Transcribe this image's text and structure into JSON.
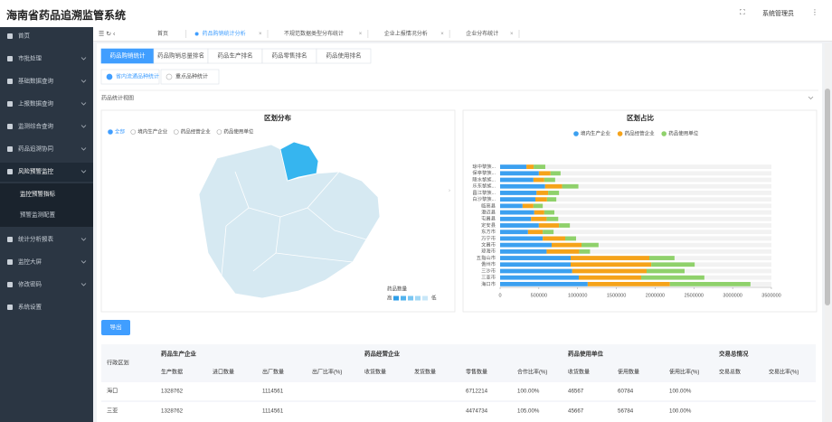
{
  "header": {
    "title": "海南省药品追溯监管系统",
    "user": "系统管理员"
  },
  "sidebar": {
    "items": [
      "首页",
      "市批处理",
      "基础数据查询",
      "上报数据查询",
      "监测综合查询",
      "药品追溯协同",
      "风险预警监控",
      "统计分析报表",
      "监控大屏",
      "修改密码",
      "系统设置"
    ],
    "subitems": [
      "监控预警指标",
      "预警监测配置"
    ]
  },
  "tabs": [
    "首页",
    "药品购销统计分析",
    "不规范数据类型分布统计",
    "企业上报情况分析",
    "企业分布统计"
  ],
  "subtabs": [
    "药品购销统计",
    "药品购销总量排名",
    "药品生产排名",
    "药品零售排名",
    "药品使用排名"
  ],
  "radios": [
    "省内流通品种统计",
    "重点品种统计"
  ],
  "section_title": "药品统计视图",
  "map": {
    "title": "区划分布",
    "options": [
      "全部",
      "境内生产企业",
      "药品经营企业",
      "药品使用单位"
    ],
    "legend_title": "药品数量",
    "legend_high": "高",
    "legend_low": "低"
  },
  "chart_data": {
    "type": "bar",
    "orientation": "horizontal",
    "stacked": true,
    "title": "区划占比",
    "categories": [
      "琼中黎族...",
      "保亭黎族...",
      "陵水黎族...",
      "乐东黎族...",
      "昌江黎族...",
      "白沙黎族...",
      "临高县",
      "澄迈县",
      "屯昌县",
      "定安县",
      "东方市",
      "万宁市",
      "文昌市",
      "琼海市",
      "五指山市",
      "儋州市",
      "三沙市",
      "三亚市",
      "海口市"
    ],
    "series": [
      {
        "name": "境内生产企业",
        "color": "#3ba0f0",
        "values": [
          340000,
          500000,
          430000,
          580000,
          470000,
          455000,
          290000,
          440000,
          400000,
          500000,
          360000,
          550000,
          665000,
          600000,
          910000,
          910000,
          930000,
          1015000,
          1130000
        ]
      },
      {
        "name": "药品经营企业",
        "color": "#f5a31a",
        "values": [
          93000,
          150000,
          140000,
          220000,
          150000,
          150000,
          140000,
          130000,
          200000,
          260000,
          190000,
          290000,
          385000,
          420000,
          1015000,
          1040000,
          960000,
          805000,
          1060000
        ]
      },
      {
        "name": "药品使用单位",
        "color": "#8fd16b",
        "values": [
          150000,
          130000,
          140000,
          210000,
          140000,
          120000,
          120000,
          130000,
          150000,
          140000,
          140000,
          140000,
          220000,
          140000,
          325000,
          560000,
          490000,
          815000,
          1040000
        ]
      }
    ],
    "xlim": [
      0,
      3500000
    ],
    "xticks": [
      0,
      500000,
      1000000,
      1500000,
      2000000,
      2500000,
      3000000,
      3500000
    ]
  },
  "export_button": "导出",
  "table": {
    "region_header": "行政区划",
    "groups": [
      "药品生产企业",
      "药品经营企业",
      "药品使用单位",
      "交易总情况"
    ],
    "columns": [
      "生产数据",
      "进口数量",
      "出厂数量",
      "出厂比率(%)",
      "收货数量",
      "发货数量",
      "零售数量",
      "合作比率(%)",
      "收货数量",
      "使用数量",
      "使用比率(%)",
      "交易总数",
      "交易比率(%)"
    ],
    "rows": [
      [
        "海口",
        "1328762",
        null,
        "1114561",
        null,
        null,
        null,
        "6712214",
        "100.00%",
        "46567",
        "60784",
        "100.00%",
        null,
        null
      ],
      [
        "三亚",
        "1328762",
        null,
        "1114561",
        null,
        null,
        null,
        "4474734",
        "105.00%",
        "45667",
        "56784",
        "100.00%",
        null,
        null
      ]
    ]
  }
}
